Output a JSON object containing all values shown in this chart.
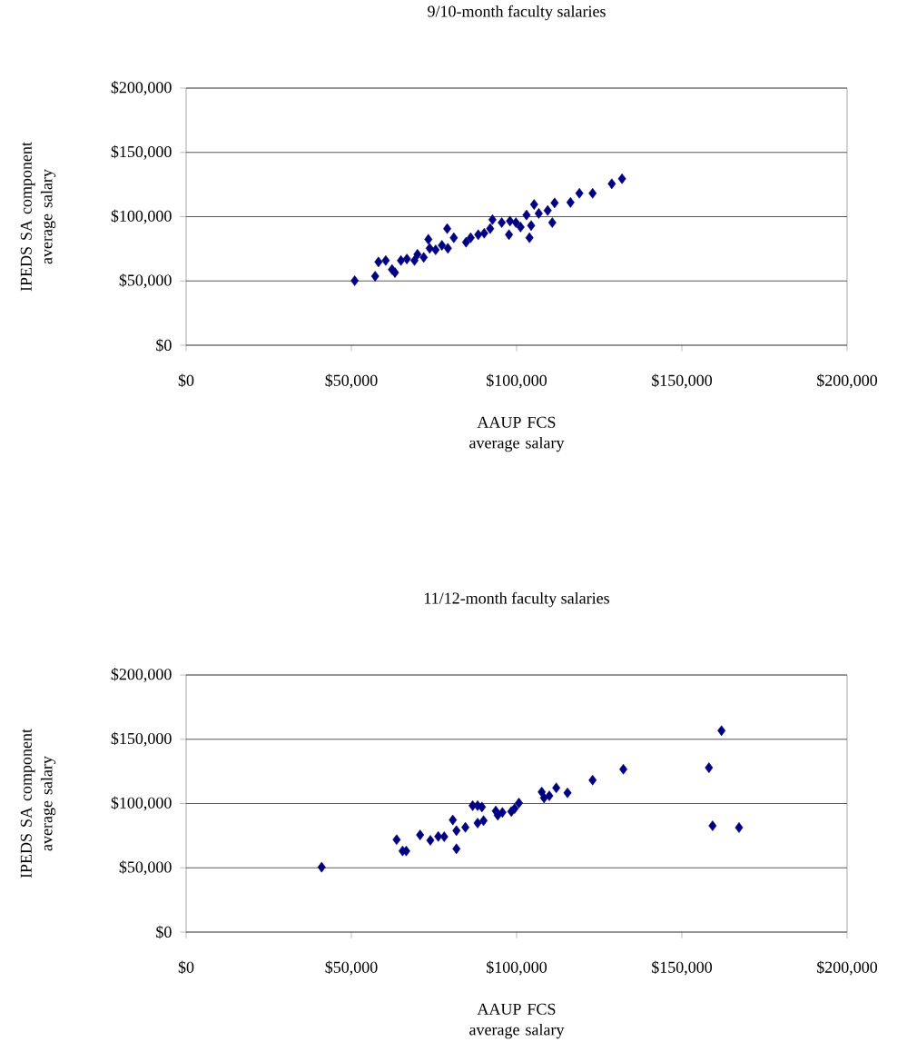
{
  "chart_data": [
    {
      "type": "scatter",
      "title": "9/10-month faculty salaries",
      "xlabel": "AAUP FCS average salary",
      "ylabel": "IPEDS SA component average salary",
      "marker": "diamond",
      "grid": "y",
      "color": "#000080",
      "x": [
        51000,
        57200,
        58200,
        60400,
        62300,
        63200,
        65000,
        66800,
        69100,
        70000,
        71900,
        73300,
        73700,
        75500,
        77400,
        79000,
        79200,
        81000,
        84700,
        86100,
        88400,
        90200,
        92000,
        92700,
        95500,
        97700,
        98000,
        99800,
        101200,
        103000,
        103900,
        104400,
        105300,
        106700,
        109400,
        110800,
        111500,
        116300,
        119000,
        123000,
        128800,
        131900
      ],
      "values": [
        50200,
        53700,
        64800,
        65900,
        58900,
        56500,
        65900,
        67100,
        65900,
        70700,
        68300,
        82400,
        75400,
        74200,
        77700,
        90700,
        75400,
        83600,
        80100,
        83600,
        86000,
        87100,
        90700,
        97700,
        95400,
        86000,
        96600,
        95400,
        91900,
        101300,
        83600,
        93100,
        109500,
        102500,
        104800,
        95400,
        110700,
        111100,
        118200,
        118200,
        125600,
        129500
      ],
      "xlim": [
        0,
        200000
      ],
      "ylim": [
        0,
        200000
      ],
      "xticks": [
        {
          "value": 0,
          "label": "$0"
        },
        {
          "value": 50000,
          "label": "$50,000"
        },
        {
          "value": 100000,
          "label": "$100,000"
        },
        {
          "value": 150000,
          "label": "$150,000"
        },
        {
          "value": 200000,
          "label": "$200,000"
        }
      ],
      "yticks": [
        {
          "value": 0,
          "label": "$0"
        },
        {
          "value": 50000,
          "label": "$50,000"
        },
        {
          "value": 100000,
          "label": "$100,000"
        },
        {
          "value": 150000,
          "label": "$150,000"
        },
        {
          "value": 200000,
          "label": "$200,000"
        }
      ]
    },
    {
      "type": "scatter",
      "title": "11/12-month faculty salaries",
      "xlabel": "AAUP FCS average salary",
      "ylabel": "IPEDS SA component average salary",
      "marker": "diamond",
      "grid": "y",
      "color": "#000080",
      "x": [
        41000,
        63700,
        65500,
        66600,
        70800,
        73900,
        76300,
        78100,
        80700,
        81800,
        81800,
        84500,
        86700,
        88200,
        89500,
        88200,
        90000,
        93700,
        94300,
        95700,
        98400,
        99400,
        100700,
        107600,
        108300,
        109900,
        112000,
        115400,
        123000,
        132300,
        158200,
        162000,
        159300,
        167300
      ],
      "values": [
        50500,
        71900,
        63100,
        63100,
        75600,
        71400,
        74400,
        74200,
        87200,
        78900,
        64800,
        81500,
        98400,
        98400,
        97300,
        84800,
        86700,
        94200,
        90900,
        93100,
        93800,
        96100,
        100400,
        109000,
        104400,
        106000,
        112200,
        108300,
        118200,
        126700,
        127900,
        156700,
        82700,
        81300
      ],
      "xlim": [
        0,
        200000
      ],
      "ylim": [
        0,
        200000
      ],
      "xticks": [
        {
          "value": 0,
          "label": "$0"
        },
        {
          "value": 50000,
          "label": "$50,000"
        },
        {
          "value": 100000,
          "label": "$100,000"
        },
        {
          "value": 150000,
          "label": "$150,000"
        },
        {
          "value": 200000,
          "label": "$200,000"
        }
      ],
      "yticks": [
        {
          "value": 0,
          "label": "$0"
        },
        {
          "value": 50000,
          "label": "$50,000"
        },
        {
          "value": 100000,
          "label": "$100,000"
        },
        {
          "value": 150000,
          "label": "$150,000"
        },
        {
          "value": 200000,
          "label": "$200,000"
        }
      ]
    }
  ]
}
